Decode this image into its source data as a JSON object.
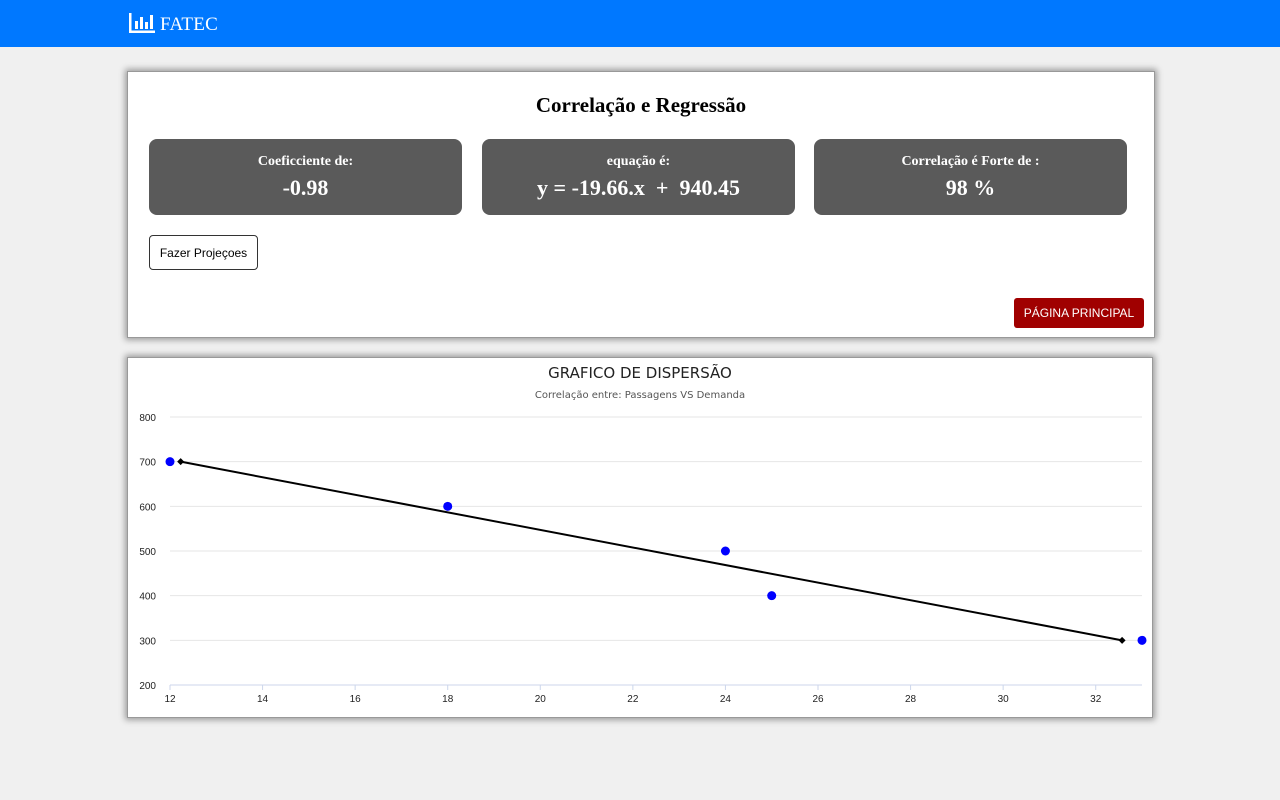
{
  "navbar": {
    "brand_icon": "bar-chart-icon",
    "brand_text": "FATEC",
    "background": "#0078ff"
  },
  "results": {
    "title": "Correlação e Regressão",
    "cards": [
      {
        "label": "Coeficciente de:",
        "value": "-0.98"
      },
      {
        "label": "equação é:",
        "value": "y = -19.66.x  +  940.45"
      },
      {
        "label": "Correlação é Forte de :",
        "value": "98 %"
      }
    ],
    "card_color": "#5a5a5a",
    "projection_button": "Fazer Projeçoes",
    "home_button": "PÁGINA PRINCIPAL",
    "home_button_color": "#a00000"
  },
  "chart": {
    "title": "GRAFICO DE DISPERSÃO",
    "subtitle": "Correlação entre: Passagens VS Demanda"
  },
  "chart_data": {
    "type": "scatter",
    "title": "GRAFICO DE DISPERSÃO",
    "subtitle": "Correlação entre: Passagens VS Demanda",
    "xlim": [
      12,
      33
    ],
    "ylim": [
      200,
      800
    ],
    "xticks": [
      12,
      14,
      16,
      18,
      20,
      22,
      24,
      26,
      28,
      30,
      32
    ],
    "yticks": [
      200,
      300,
      400,
      500,
      600,
      700,
      800
    ],
    "grid": true,
    "series": [
      {
        "name": "Passagens VS Demanda",
        "type": "scatter",
        "color": "#0000ff",
        "points": [
          [
            12,
            700
          ],
          [
            18,
            600
          ],
          [
            24,
            500
          ],
          [
            25,
            400
          ],
          [
            33,
            300
          ]
        ]
      },
      {
        "name": "Regressão",
        "type": "line",
        "color": "#000000",
        "points": [
          [
            12.23,
            700
          ],
          [
            32.57,
            300
          ]
        ]
      }
    ]
  }
}
